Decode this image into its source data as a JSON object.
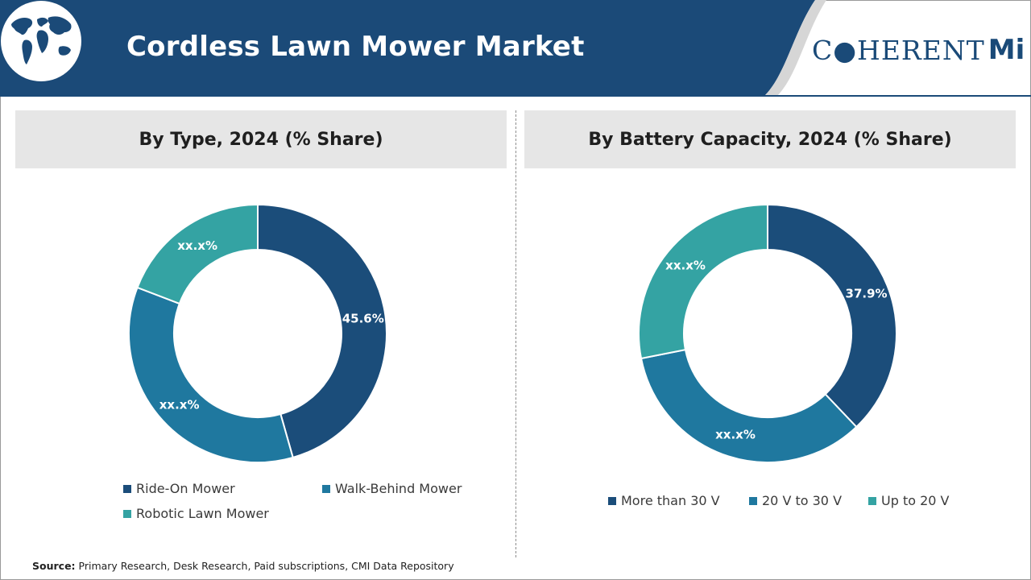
{
  "header": {
    "title": "Cordless Lawn Mower Market",
    "logo_text": "C●HERENT",
    "logo_suffix": "Mi",
    "banner_color": "#1b4a78",
    "icons": {
      "globe": "world-map-globe-icon"
    }
  },
  "chart_data": [
    {
      "type": "pie",
      "donut": true,
      "title": "By Type, 2024 (% Share)",
      "categories": [
        "Ride-On Mower",
        "Walk-Behind Mower",
        "Robotic Lawn Mower"
      ],
      "values": [
        45.6,
        35.2,
        19.2
      ],
      "labels": [
        "45.6%",
        "xx.x%",
        "xx.x%"
      ],
      "colors": [
        "#1b4d7a",
        "#1f789f",
        "#34a3a3"
      ],
      "legend": "bottom"
    },
    {
      "type": "pie",
      "donut": true,
      "title": "By Battery Capacity, 2024 (% Share)",
      "categories": [
        "More than 30 V",
        "20 V to 30 V",
        "Up to 20 V"
      ],
      "values": [
        37.9,
        34.0,
        28.1
      ],
      "labels": [
        "37.9%",
        "xx.x%",
        "xx.x%"
      ],
      "colors": [
        "#1b4d7a",
        "#1f789f",
        "#34a3a3"
      ],
      "legend": "bottom"
    }
  ],
  "source": {
    "label": "Source:",
    "text": "Primary Research, Desk Research, Paid subscriptions, CMI Data Repository"
  }
}
